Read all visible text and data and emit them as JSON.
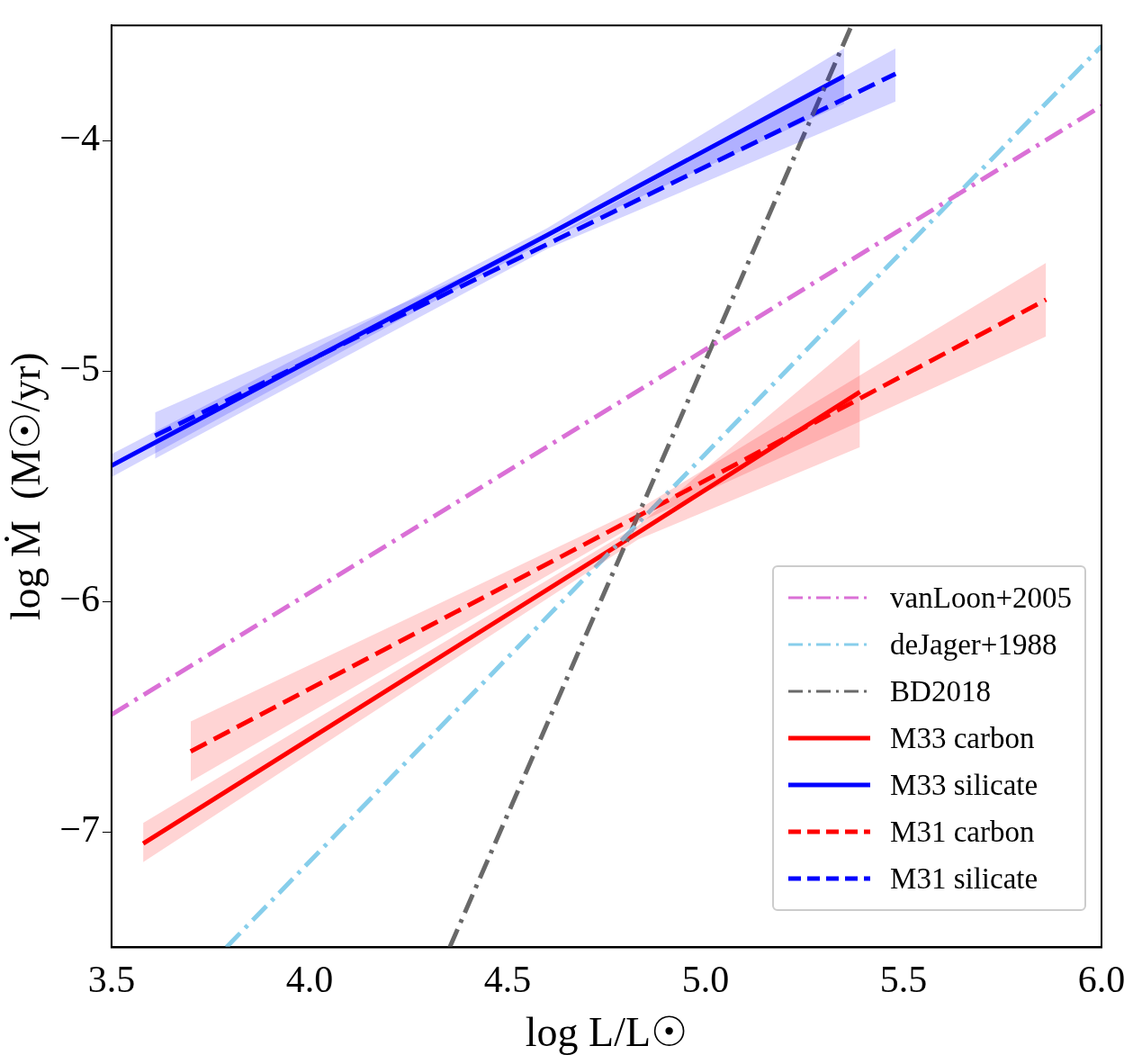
{
  "chart_data": {
    "type": "line",
    "xlabel": "log L/L☉",
    "ylabel": "log Ṁ  (M☉/yr)",
    "xlim": [
      3.5,
      6.0
    ],
    "xticks": [
      {
        "value": 3.5,
        "label": "3.5"
      },
      {
        "value": 4,
        "label": "4.0"
      },
      {
        "value": 4.5,
        "label": "4.5"
      },
      {
        "value": 5,
        "label": "5.0"
      },
      {
        "value": 5.5,
        "label": "5.5"
      },
      {
        "value": 6,
        "label": "6.0"
      }
    ],
    "ylim": [
      -7.5,
      -3.5
    ],
    "yticks": [
      {
        "value": -7,
        "label": "−7"
      },
      {
        "value": -6,
        "label": "−6"
      },
      {
        "value": -5,
        "label": "−5"
      },
      {
        "value": -4,
        "label": "−4"
      }
    ],
    "grid": false,
    "legend": "bottom right",
    "marker": "none",
    "series": [
      {
        "name": "vanLoon+2005",
        "color": "#da70d6",
        "line_style": "dashdot",
        "x": [
          3.5,
          6.0
        ],
        "values": [
          -6.49,
          -3.85
        ]
      },
      {
        "name": "deJager+1988",
        "color": "#87ceeb",
        "line_style": "dashdot",
        "x": [
          3.79,
          6.0
        ],
        "values": [
          -7.5,
          -3.59
        ]
      },
      {
        "name": "BD2018",
        "color": "#696969",
        "line_style": "dashdot",
        "x": [
          4.354,
          5.369
        ],
        "values": [
          -7.5,
          -3.5
        ]
      },
      {
        "name": "M33 carbon",
        "color": "#ff0000",
        "line_style": "solid",
        "x": [
          3.58,
          4.83,
          5.39
        ],
        "values": [
          -7.05,
          -5.7,
          -5.09
        ],
        "lower": [
          -7.13,
          -5.73,
          -5.33
        ],
        "upper": [
          -6.96,
          -5.67,
          -4.86
        ]
      },
      {
        "name": "M33 silicate",
        "color": "#0000ff",
        "line_style": "solid",
        "x": [
          3.5,
          4.6,
          5.35
        ],
        "values": [
          -5.41,
          -4.41,
          -3.72
        ],
        "lower": [
          -5.46,
          -4.43,
          -3.84
        ],
        "upper": [
          -5.36,
          -4.38,
          -3.6
        ]
      },
      {
        "name": "M31 carbon",
        "color": "#ff0000",
        "line_style": "dashed",
        "x": [
          3.7,
          4.84,
          5.86
        ],
        "values": [
          -6.65,
          -5.62,
          -4.69
        ],
        "lower": [
          -6.78,
          -5.65,
          -4.85
        ],
        "upper": [
          -6.52,
          -5.59,
          -4.53
        ]
      },
      {
        "name": "M31 silicate",
        "color": "#0000ff",
        "line_style": "dashed",
        "x": [
          3.61,
          4.6,
          5.48
        ],
        "values": [
          -5.28,
          -4.45,
          -3.71
        ],
        "lower": [
          -5.38,
          -4.47,
          -3.83
        ],
        "upper": [
          -5.18,
          -4.43,
          -3.6
        ]
      }
    ]
  }
}
